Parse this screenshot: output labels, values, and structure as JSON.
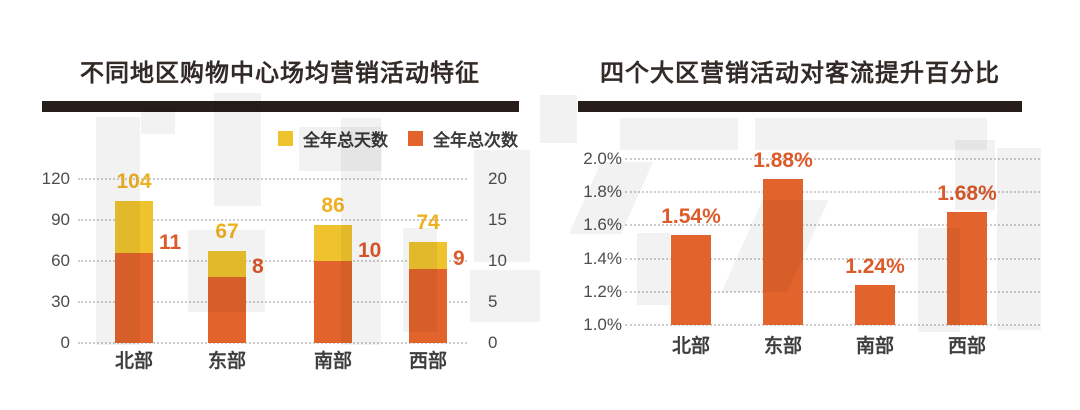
{
  "chart_data": [
    {
      "type": "bar",
      "title": "不同地区购物中心场均营销活动特征",
      "categories": [
        "北部",
        "东部",
        "南部",
        "西部"
      ],
      "series": [
        {
          "name": "全年总天数",
          "axis": "left",
          "color": "#EFC32E",
          "label_color": "#EEB122",
          "values": [
            104,
            67,
            86,
            74
          ]
        },
        {
          "name": "全年总次数",
          "axis": "right",
          "color": "#E2642C",
          "label_color": "#DD5A2B",
          "values": [
            11,
            8,
            10,
            9
          ]
        }
      ],
      "bar_style": "overlapped dual-axis",
      "left_axis": {
        "min": 0,
        "max": 120,
        "ticks": [
          "0",
          "30",
          "60",
          "90",
          "120"
        ]
      },
      "right_axis": {
        "min": 0,
        "max": 20,
        "ticks": [
          "0",
          "5",
          "10",
          "15",
          "20"
        ]
      },
      "grid": "horizontal dotted",
      "legend_position": "top-right"
    },
    {
      "type": "bar",
      "title": "四个大区营销活动对客流提升百分比",
      "categories": [
        "北部",
        "东部",
        "南部",
        "西部"
      ],
      "values": [
        1.54,
        1.88,
        1.24,
        1.68
      ],
      "value_labels": [
        "1.54%",
        "1.88%",
        "1.24%",
        "1.68%"
      ],
      "bar_color": "#E2642C",
      "label_color": "#DD5A2B",
      "y_axis": {
        "min": 1.0,
        "max": 2.0,
        "ticks": [
          "1.0%",
          "1.2%",
          "1.4%",
          "1.6%",
          "1.8%",
          "2.0%"
        ]
      },
      "grid": "horizontal dotted",
      "legend_position": "none"
    }
  ],
  "colors": {
    "title_text": "#322A26",
    "title_rule": "#271E1B",
    "axis_text": "#4D4D4D",
    "category_text": "#3E3E3E",
    "gridline": "#CDCDCD",
    "background": "#FFFFFF",
    "watermark": "rgba(0,0,0,0.05)"
  }
}
